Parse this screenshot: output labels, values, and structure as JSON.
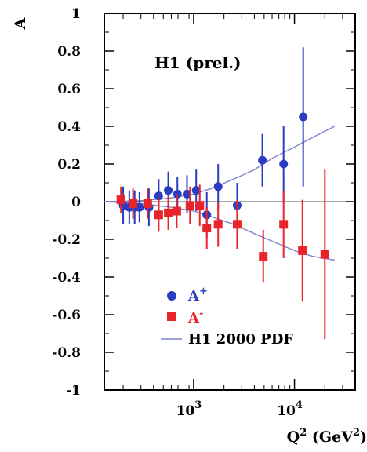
{
  "chart_data": {
    "type": "scatter",
    "title": "H1 (prel.)",
    "xlabel": "Q",
    "xlabel_sup": "2",
    "xlabel_unit_open": " (GeV",
    "xlabel_unit_sup": "2",
    "xlabel_unit_close": ")",
    "ylabel": "A",
    "xscale": "log",
    "xlim": [
      130,
      40000
    ],
    "ylim": [
      -1,
      1
    ],
    "yticks": [
      "1",
      "0.8",
      "0.6",
      "0.4",
      "0.2",
      "0",
      "-0.2",
      "-0.4",
      "-0.6",
      "-0.8",
      "-1"
    ],
    "ytick_values": [
      1,
      0.8,
      0.6,
      0.4,
      0.2,
      0,
      -0.2,
      -0.4,
      -0.6,
      -0.8,
      -1
    ],
    "xticks": [
      {
        "value": 1000,
        "base": "10",
        "exp": "3"
      },
      {
        "value": 10000,
        "base": "10",
        "exp": "4"
      }
    ],
    "legend": {
      "placement": "bottom-left",
      "entries": [
        {
          "name": "A",
          "sup": "+",
          "marker": "circle",
          "color": "#2a3cc0"
        },
        {
          "name": "A",
          "sup": "-",
          "marker": "square",
          "color": "#e8242a"
        },
        {
          "name": "H1 2000 PDF",
          "marker": "line",
          "color": "#7d83cc"
        }
      ]
    },
    "series": [
      {
        "name": "A+",
        "marker": "circle",
        "color": "#2a3cc0",
        "points": [
          {
            "x": 200,
            "y": -0.02,
            "err": 0.1
          },
          {
            "x": 230,
            "y": -0.03,
            "err": 0.09
          },
          {
            "x": 260,
            "y": -0.03,
            "err": 0.09
          },
          {
            "x": 290,
            "y": -0.03,
            "err": 0.08
          },
          {
            "x": 360,
            "y": -0.03,
            "err": 0.1
          },
          {
            "x": 450,
            "y": 0.03,
            "err": 0.09
          },
          {
            "x": 560,
            "y": 0.06,
            "err": 0.1
          },
          {
            "x": 690,
            "y": 0.04,
            "err": 0.09
          },
          {
            "x": 860,
            "y": 0.04,
            "err": 0.1
          },
          {
            "x": 1060,
            "y": 0.06,
            "err": 0.11
          },
          {
            "x": 1350,
            "y": -0.07,
            "err": 0.12
          },
          {
            "x": 1750,
            "y": 0.08,
            "err": 0.12
          },
          {
            "x": 2700,
            "y": -0.02,
            "err": 0.12
          },
          {
            "x": 4800,
            "y": 0.22,
            "err": 0.14
          },
          {
            "x": 7800,
            "y": 0.2,
            "err": 0.2
          },
          {
            "x": 12200,
            "y": 0.45,
            "err": 0.37
          }
        ]
      },
      {
        "name": "A-",
        "marker": "square",
        "color": "#e8242a",
        "points": [
          {
            "x": 190,
            "y": 0.01,
            "err": 0.07
          },
          {
            "x": 250,
            "y": -0.01,
            "err": 0.08
          },
          {
            "x": 350,
            "y": -0.01,
            "err": 0.08
          },
          {
            "x": 450,
            "y": -0.07,
            "err": 0.09
          },
          {
            "x": 560,
            "y": -0.06,
            "err": 0.09
          },
          {
            "x": 680,
            "y": -0.05,
            "err": 0.09
          },
          {
            "x": 920,
            "y": -0.02,
            "err": 0.1
          },
          {
            "x": 1150,
            "y": -0.02,
            "err": 0.11
          },
          {
            "x": 1350,
            "y": -0.14,
            "err": 0.11
          },
          {
            "x": 1750,
            "y": -0.12,
            "err": 0.12
          },
          {
            "x": 2700,
            "y": -0.12,
            "err": 0.13
          },
          {
            "x": 4900,
            "y": -0.29,
            "err": 0.14
          },
          {
            "x": 7800,
            "y": -0.12,
            "err": 0.18
          },
          {
            "x": 12000,
            "y": -0.26,
            "err": 0.27
          },
          {
            "x": 20000,
            "y": -0.28,
            "err": 0.45
          }
        ]
      },
      {
        "name": "H1 2000 PDF A+",
        "marker": "line",
        "color": "#7d83cc",
        "points": [
          {
            "x": 130,
            "y": 0.0
          },
          {
            "x": 300,
            "y": 0.005
          },
          {
            "x": 600,
            "y": 0.02
          },
          {
            "x": 1000,
            "y": 0.04
          },
          {
            "x": 1500,
            "y": 0.07
          },
          {
            "x": 2500,
            "y": 0.12
          },
          {
            "x": 4000,
            "y": 0.17
          },
          {
            "x": 6000,
            "y": 0.23
          },
          {
            "x": 10000,
            "y": 0.29
          },
          {
            "x": 15000,
            "y": 0.34
          },
          {
            "x": 25000,
            "y": 0.4
          }
        ]
      },
      {
        "name": "H1 2000 PDF A-",
        "marker": "line",
        "color": "#7d83cc",
        "points": [
          {
            "x": 130,
            "y": 0.0
          },
          {
            "x": 300,
            "y": -0.01
          },
          {
            "x": 600,
            "y": -0.03
          },
          {
            "x": 1000,
            "y": -0.05
          },
          {
            "x": 1500,
            "y": -0.08
          },
          {
            "x": 2500,
            "y": -0.12
          },
          {
            "x": 4000,
            "y": -0.17
          },
          {
            "x": 6000,
            "y": -0.21
          },
          {
            "x": 10000,
            "y": -0.26
          },
          {
            "x": 15000,
            "y": -0.29
          },
          {
            "x": 25000,
            "y": -0.31
          }
        ]
      }
    ]
  }
}
